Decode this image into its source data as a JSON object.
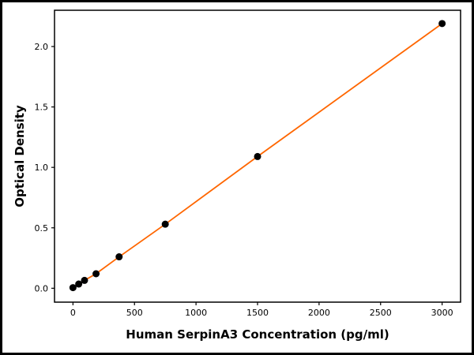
{
  "frame": {
    "border_color": "#000000",
    "background": "#ffffff"
  },
  "chart_data": {
    "type": "scatter",
    "title": "",
    "xlabel": "Human SerpinA3 Concentration (pg/ml)",
    "ylabel": "Optical Density",
    "x": [
      0,
      46.9,
      93.8,
      187.5,
      375,
      750,
      1500,
      3000
    ],
    "y": [
      0.005,
      0.035,
      0.065,
      0.12,
      0.26,
      0.53,
      1.09,
      2.19
    ],
    "series": [
      {
        "name": "standard-curve",
        "line": true,
        "line_color": "#ff6600",
        "marker": "circle",
        "marker_color": "#000000"
      }
    ],
    "xlim": [
      -150,
      3150
    ],
    "ylim": [
      -0.115,
      2.3
    ],
    "x_ticks": [
      0,
      500,
      1000,
      1500,
      2000,
      2500,
      3000
    ],
    "x_tick_labels": [
      "0",
      "500",
      "1000",
      "1500",
      "2000",
      "2500",
      "3000"
    ],
    "y_ticks": [
      0,
      0.5,
      1.0,
      1.5,
      2.0
    ],
    "y_tick_labels": [
      "0.0",
      "0.5",
      "1.0",
      "1.5",
      "2.0"
    ],
    "grid": false,
    "legend": "none",
    "spine_color": "#000000"
  }
}
